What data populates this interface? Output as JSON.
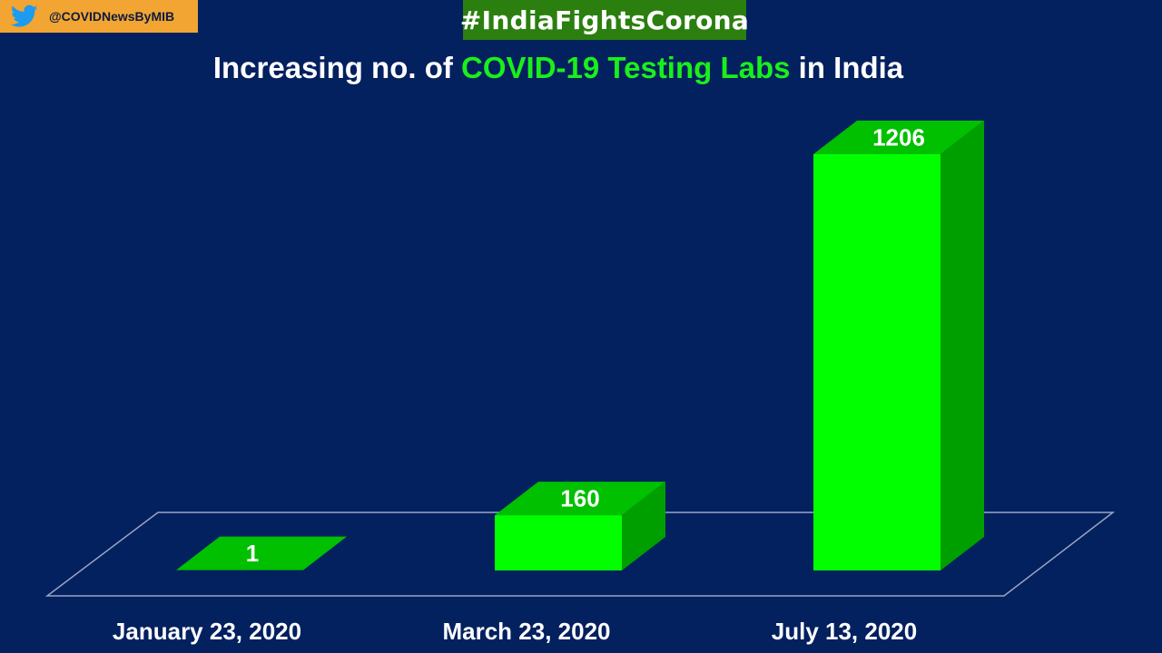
{
  "badge": {
    "handle": "@COVIDNewsByMIB",
    "icon": "twitter-bird-icon"
  },
  "hashtag": "#IndiaFightsCorona",
  "title": {
    "part1": "Increasing no. of ",
    "part2": "COVID-19 Testing Labs",
    "part3": " in India"
  },
  "colors": {
    "background": "#03205f",
    "bar_front": "#02ff00",
    "bar_top": "#00c000",
    "bar_side": "#009f00",
    "title_highlight": "#19f01b",
    "hashtag_bg": "#2b7f0f",
    "badge_bg": "#f2a533"
  },
  "chart_data": {
    "type": "bar",
    "categories": [
      "January 23, 2020",
      "March 23, 2020",
      "July 13, 2020"
    ],
    "values": [
      1,
      160,
      1206
    ],
    "data_labels": [
      "1",
      "160",
      "1206"
    ],
    "title": "Increasing no. of COVID-19 Testing Labs in India",
    "xlabel": "",
    "ylabel": "",
    "grid": false,
    "legend": "none",
    "style": "3d"
  }
}
